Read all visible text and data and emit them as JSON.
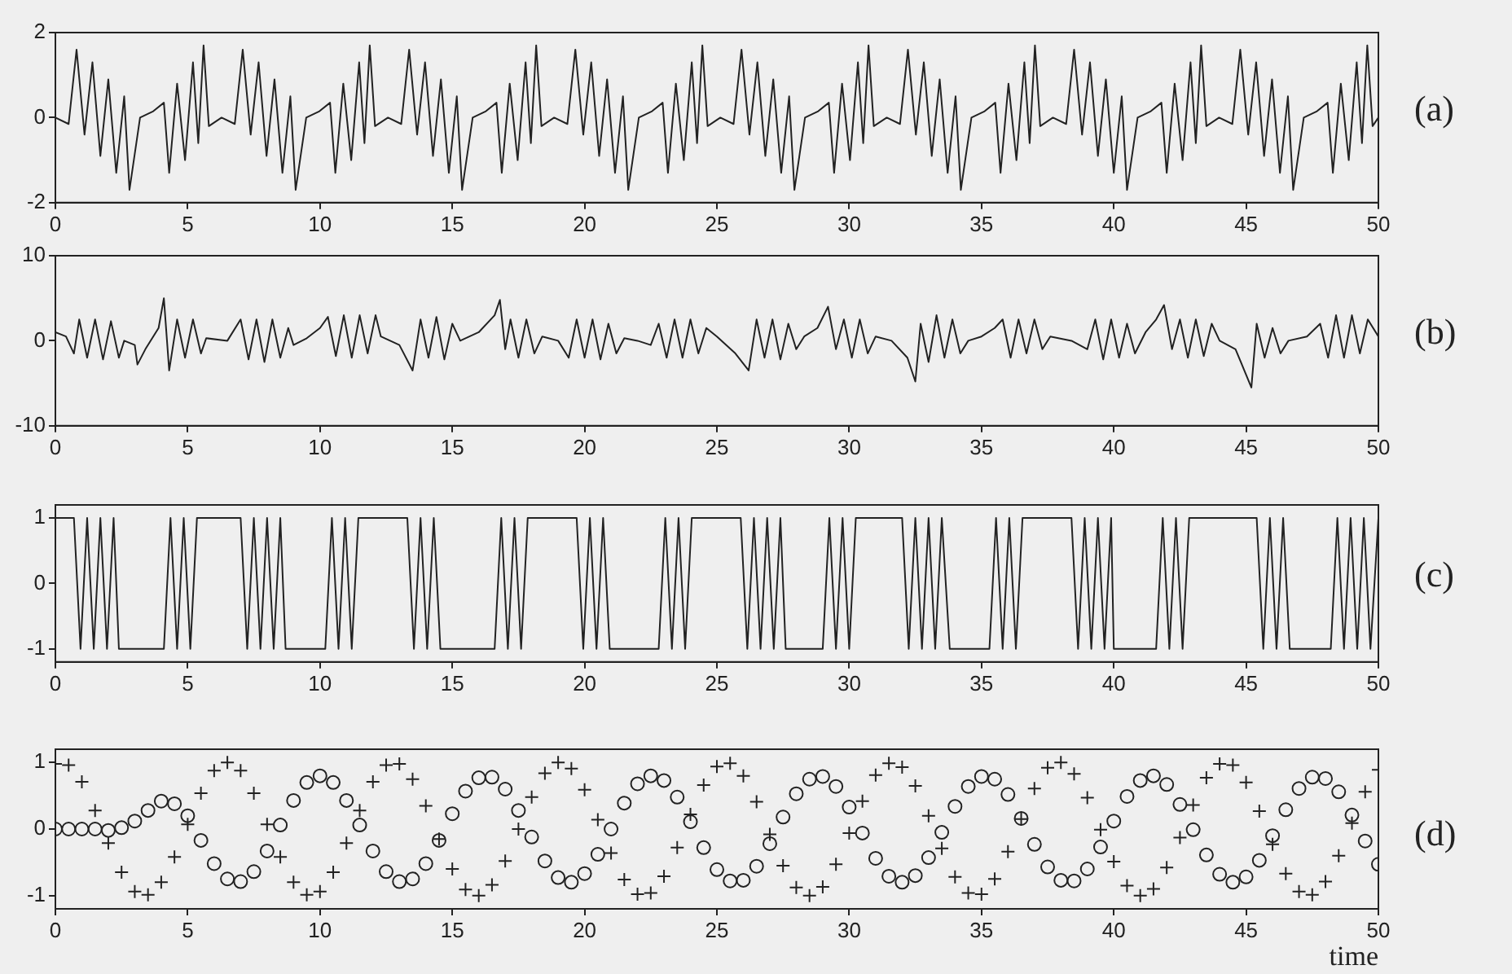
{
  "chart_data": [
    {
      "type": "line",
      "xlim": [
        0,
        50
      ],
      "xticks": [
        0,
        5,
        10,
        15,
        20,
        25,
        30,
        35,
        40,
        45,
        50
      ],
      "ylim": [
        -2,
        2
      ],
      "yticks": [
        -2,
        0,
        2
      ],
      "annotations": [
        "(a)"
      ],
      "x": [
        0,
        0.5,
        0.8,
        1.1,
        1.4,
        1.7,
        2,
        2.3,
        2.6,
        2.8,
        3.2,
        3.7,
        4.1,
        4.3,
        4.6,
        4.9,
        5.2,
        5.4,
        5.6,
        5.8,
        6.28,
        6.78,
        7.08,
        7.38,
        7.68,
        7.98,
        8.28,
        8.58,
        8.88,
        9.08,
        9.48,
        9.98,
        10.38,
        10.58,
        10.88,
        11.18,
        11.48,
        11.68,
        11.88,
        12.08,
        12.57,
        13.07,
        13.37,
        13.67,
        13.97,
        14.27,
        14.57,
        14.87,
        15.17,
        15.37,
        15.77,
        16.27,
        16.67,
        16.87,
        17.17,
        17.47,
        17.77,
        17.97,
        18.17,
        18.37,
        18.85,
        19.35,
        19.65,
        19.95,
        20.25,
        20.55,
        20.85,
        21.15,
        21.45,
        21.65,
        22.05,
        22.55,
        22.95,
        23.15,
        23.45,
        23.75,
        24.05,
        24.25,
        24.45,
        24.65,
        25.13,
        25.63,
        25.93,
        26.23,
        26.53,
        26.83,
        27.13,
        27.43,
        27.73,
        27.93,
        28.33,
        28.83,
        29.23,
        29.43,
        29.73,
        30.03,
        30.33,
        30.53,
        30.73,
        30.93,
        31.42,
        31.92,
        32.22,
        32.52,
        32.82,
        33.12,
        33.42,
        33.72,
        34.02,
        34.22,
        34.62,
        35.12,
        35.52,
        35.72,
        36.02,
        36.32,
        36.62,
        36.82,
        37.02,
        37.22,
        37.7,
        38.2,
        38.5,
        38.8,
        39.1,
        39.4,
        39.7,
        40,
        40.3,
        40.5,
        40.9,
        41.4,
        41.8,
        42,
        42.3,
        42.6,
        42.9,
        43.1,
        43.3,
        43.5,
        43.98,
        44.48,
        44.78,
        45.08,
        45.38,
        45.68,
        45.98,
        46.28,
        46.58,
        46.78,
        47.18,
        47.68,
        48.08,
        48.28,
        48.58,
        48.88,
        49.18,
        49.38,
        49.58,
        49.78,
        50
      ],
      "series": [
        {
          "color": "#222222",
          "values": [
            0,
            -0.15,
            1.6,
            -0.4,
            1.3,
            -0.9,
            0.9,
            -1.3,
            0.5,
            -1.7,
            0,
            0.15,
            0.35,
            -1.3,
            0.8,
            -1,
            1.3,
            -0.6,
            1.7,
            -0.2,
            0,
            -0.15,
            1.6,
            -0.4,
            1.3,
            -0.9,
            0.9,
            -1.3,
            0.5,
            -1.7,
            0,
            0.15,
            0.35,
            -1.3,
            0.8,
            -1,
            1.3,
            -0.6,
            1.7,
            -0.2,
            0,
            -0.15,
            1.6,
            -0.4,
            1.3,
            -0.9,
            0.9,
            -1.3,
            0.5,
            -1.7,
            0,
            0.15,
            0.35,
            -1.3,
            0.8,
            -1,
            1.3,
            -0.6,
            1.7,
            -0.2,
            0,
            -0.15,
            1.6,
            -0.4,
            1.3,
            -0.9,
            0.9,
            -1.3,
            0.5,
            -1.7,
            0,
            0.15,
            0.35,
            -1.3,
            0.8,
            -1,
            1.3,
            -0.6,
            1.7,
            -0.2,
            0,
            -0.15,
            1.6,
            -0.4,
            1.3,
            -0.9,
            0.9,
            -1.3,
            0.5,
            -1.7,
            0,
            0.15,
            0.35,
            -1.3,
            0.8,
            -1,
            1.3,
            -0.6,
            1.7,
            -0.2,
            0,
            -0.15,
            1.6,
            -0.4,
            1.3,
            -0.9,
            0.9,
            -1.3,
            0.5,
            -1.7,
            0,
            0.15,
            0.35,
            -1.3,
            0.8,
            -1,
            1.3,
            -0.6,
            1.7,
            -0.2,
            0,
            -0.15,
            1.6,
            -0.4,
            1.3,
            -0.9,
            0.9,
            -1.3,
            0.5,
            -1.7,
            0,
            0.15,
            0.35,
            -1.3,
            0.8,
            -1,
            1.3,
            -0.6,
            1.7,
            -0.2,
            0,
            -0.15,
            1.6,
            -0.4,
            1.3,
            -0.9,
            0.9,
            -1.3,
            0.5,
            -1.7,
            0,
            0.15,
            0.35,
            -1.3,
            0.8,
            -1,
            1.3,
            -0.6,
            1.7,
            -0.2,
            0
          ]
        }
      ]
    },
    {
      "type": "line",
      "xlim": [
        0,
        50
      ],
      "xticks": [
        0,
        5,
        10,
        15,
        20,
        25,
        30,
        35,
        40,
        45,
        50
      ],
      "ylim": [
        -10,
        10
      ],
      "yticks": [
        -10,
        0,
        10
      ],
      "annotations": [
        "(b)"
      ],
      "x": [
        0,
        0.4,
        0.7,
        0.9,
        1.2,
        1.5,
        1.8,
        2.1,
        2.4,
        2.6,
        3,
        3.1,
        3.4,
        3.9,
        4.1,
        4.3,
        4.6,
        4.9,
        5.2,
        5.5,
        5.7,
        6.5,
        7,
        7.3,
        7.6,
        7.9,
        8.2,
        8.5,
        8.8,
        9,
        9.5,
        10,
        10.3,
        10.6,
        10.9,
        11.2,
        11.5,
        11.8,
        12.1,
        12.3,
        13,
        13.5,
        13.8,
        14.1,
        14.4,
        14.7,
        15,
        15.3,
        16,
        16.6,
        16.8,
        17,
        17.2,
        17.5,
        17.8,
        18.1,
        18.4,
        19,
        19.4,
        19.7,
        20,
        20.3,
        20.6,
        20.9,
        21.2,
        21.5,
        22,
        22.5,
        22.8,
        23.1,
        23.4,
        23.7,
        24,
        24.3,
        24.6,
        25,
        25.7,
        26.2,
        26.5,
        26.8,
        27.1,
        27.4,
        27.7,
        28,
        28.3,
        28.8,
        29.2,
        29.5,
        29.8,
        30.1,
        30.4,
        30.7,
        31,
        31.6,
        32.2,
        32.5,
        32.7,
        33,
        33.3,
        33.6,
        33.9,
        34.2,
        34.5,
        35,
        35.5,
        35.8,
        36.1,
        36.4,
        36.7,
        37,
        37.3,
        37.6,
        38.4,
        39,
        39.3,
        39.6,
        39.9,
        40.2,
        40.5,
        40.8,
        41.2,
        41.6,
        41.9,
        42.2,
        42.5,
        42.8,
        43.1,
        43.4,
        43.7,
        44,
        44.6,
        45.2,
        45.4,
        45.7,
        46,
        46.3,
        46.6,
        47.3,
        47.8,
        48.1,
        48.4,
        48.7,
        49,
        49.3,
        49.6,
        50
      ],
      "series": [
        {
          "color": "#222222",
          "values": [
            1,
            0.5,
            -1.5,
            2.5,
            -2,
            2.5,
            -2.2,
            2.3,
            -2,
            0,
            -0.5,
            -2.8,
            -1,
            1.5,
            5,
            -3.5,
            2.5,
            -2,
            2.5,
            -1.5,
            0.3,
            0,
            2.5,
            -2.2,
            2.5,
            -2.5,
            2.5,
            -2,
            1.5,
            -0.5,
            0.3,
            1.5,
            2.8,
            -1.8,
            3,
            -2,
            3,
            -1.5,
            3,
            0.5,
            -0.5,
            -3.5,
            2.5,
            -2,
            2.8,
            -2.2,
            2,
            0,
            1,
            3,
            4.8,
            -1,
            2.5,
            -2,
            2.5,
            -1.5,
            0.5,
            0,
            -2,
            2.5,
            -2,
            2.5,
            -2.2,
            2,
            -1.5,
            0.3,
            0,
            -0.5,
            2,
            -2,
            2.5,
            -2,
            2.5,
            -1.5,
            1.5,
            0.5,
            -1.5,
            -3.5,
            2.5,
            -2,
            2.5,
            -2.2,
            2,
            -1,
            0.5,
            1.5,
            4,
            -1,
            2.5,
            -2,
            2.5,
            -1.5,
            0.5,
            0,
            -2,
            -4.8,
            2,
            -2.5,
            3,
            -2,
            2.5,
            -1.5,
            0,
            0.5,
            1.5,
            2.5,
            -2,
            2.5,
            -1.5,
            2.5,
            -1,
            0.5,
            0,
            -1,
            2.5,
            -2.2,
            2.5,
            -2,
            2,
            -1.5,
            1,
            2.5,
            4.2,
            -1,
            2.5,
            -2,
            2.5,
            -1.8,
            2,
            0,
            -1,
            -5.5,
            2,
            -2,
            1.5,
            -1.5,
            0,
            0.5,
            2,
            -2,
            3,
            -2,
            3,
            -1.5,
            2.5,
            0.5
          ]
        }
      ]
    },
    {
      "type": "line",
      "xlim": [
        0,
        50
      ],
      "xticks": [
        0,
        5,
        10,
        15,
        20,
        25,
        30,
        35,
        40,
        45,
        50
      ],
      "ylim": [
        -1.2,
        1.2
      ],
      "yticks": [
        -1,
        0,
        1
      ],
      "annotations": [
        "(c)"
      ],
      "x": [
        0,
        0.7,
        0.95,
        1.2,
        1.45,
        1.7,
        1.95,
        2.2,
        2.4,
        4.1,
        4.35,
        4.6,
        4.85,
        5.1,
        5.35,
        7,
        7.25,
        7.5,
        7.75,
        8,
        8.25,
        8.5,
        8.7,
        10.2,
        10.45,
        10.7,
        10.95,
        11.2,
        11.45,
        13.3,
        13.55,
        13.8,
        14.05,
        14.3,
        14.55,
        16.6,
        16.85,
        17.1,
        17.35,
        17.6,
        17.85,
        19.7,
        19.95,
        20.2,
        20.45,
        20.7,
        20.95,
        22.8,
        23.05,
        23.3,
        23.55,
        23.8,
        24.05,
        25.9,
        26.15,
        26.4,
        26.65,
        26.9,
        27.15,
        27.4,
        27.6,
        29,
        29.25,
        29.5,
        29.75,
        30,
        30.25,
        32,
        32.25,
        32.5,
        32.75,
        33,
        33.25,
        33.5,
        33.8,
        35.3,
        35.55,
        35.8,
        36.05,
        36.3,
        36.55,
        38.4,
        38.65,
        38.9,
        39.15,
        39.4,
        39.65,
        39.9,
        40,
        41.6,
        41.85,
        42.1,
        42.35,
        42.6,
        42.85,
        45.4,
        45.65,
        45.9,
        46.15,
        46.4,
        46.65,
        48.2,
        48.45,
        48.7,
        48.95,
        49.2,
        49.45,
        49.7,
        50
      ],
      "series": [
        {
          "color": "#222222",
          "values": [
            1,
            1,
            -1,
            1,
            -1,
            1,
            -1,
            1,
            -1,
            -1,
            1,
            -1,
            1,
            -1,
            1,
            1,
            -1,
            1,
            -1,
            1,
            -1,
            1,
            -1,
            -1,
            1,
            -1,
            1,
            -1,
            1,
            1,
            -1,
            1,
            -1,
            1,
            -1,
            -1,
            1,
            -1,
            1,
            -1,
            1,
            1,
            -1,
            1,
            -1,
            1,
            -1,
            -1,
            1,
            -1,
            1,
            -1,
            1,
            1,
            -1,
            1,
            -1,
            1,
            -1,
            1,
            -1,
            -1,
            1,
            -1,
            1,
            -1,
            1,
            1,
            -1,
            1,
            -1,
            1,
            -1,
            1,
            -1,
            -1,
            1,
            -1,
            1,
            -1,
            1,
            1,
            -1,
            1,
            -1,
            1,
            -1,
            1,
            -1,
            -1,
            1,
            -1,
            1,
            -1,
            1,
            1,
            -1,
            1,
            -1,
            1,
            -1,
            -1,
            1,
            -1,
            1,
            -1,
            1,
            -1,
            1
          ]
        }
      ]
    },
    {
      "type": "scatter",
      "xlim": [
        0,
        50
      ],
      "xticks": [
        0,
        5,
        10,
        15,
        20,
        25,
        30,
        35,
        40,
        45,
        50
      ],
      "ylim": [
        -1.2,
        1.2
      ],
      "yticks": [
        -1,
        0,
        1
      ],
      "xlabel": "time",
      "annotations": [
        "(d)"
      ],
      "x": [
        0,
        0.5,
        1,
        1.5,
        2,
        2.5,
        3,
        3.5,
        4,
        4.5,
        5,
        5.5,
        6,
        6.5,
        7,
        7.5,
        8,
        8.5,
        9,
        9.5,
        10,
        10.5,
        11,
        11.5,
        12,
        12.5,
        13,
        13.5,
        14,
        14.5,
        15,
        15.5,
        16,
        16.5,
        17,
        17.5,
        18,
        18.5,
        19,
        19.5,
        20,
        20.5,
        21,
        21.5,
        22,
        22.5,
        23,
        23.5,
        24,
        24.5,
        25,
        25.5,
        26,
        26.5,
        27,
        27.5,
        28,
        28.5,
        29,
        29.5,
        30,
        30.5,
        31,
        31.5,
        32,
        32.5,
        33,
        33.5,
        34,
        34.5,
        35,
        35.5,
        36,
        36.5,
        37,
        37.5,
        38,
        38.5,
        39,
        39.5,
        40,
        40.5,
        41,
        41.5,
        42,
        42.5,
        43,
        43.5,
        44,
        44.5,
        45,
        45.5,
        46,
        46.5,
        47,
        47.5,
        48,
        48.5,
        49,
        49.5,
        50
      ],
      "series": [
        {
          "color": "#222222",
          "marker": "circle",
          "values": [
            0,
            0,
            0,
            0,
            -0.02,
            0.02,
            0.12,
            0.28,
            0.42,
            0.38,
            0.2,
            -0.17,
            -0.52,
            -0.75,
            -0.79,
            -0.64,
            -0.33,
            0.06,
            0.43,
            0.7,
            0.8,
            0.7,
            0.43,
            0.06,
            -0.33,
            -0.64,
            -0.79,
            -0.75,
            -0.52,
            -0.17,
            0.23,
            0.57,
            0.77,
            0.78,
            0.6,
            0.28,
            -0.12,
            -0.48,
            -0.73,
            -0.8,
            -0.67,
            -0.38,
            0,
            0.39,
            0.68,
            0.8,
            0.73,
            0.48,
            0.11,
            -0.28,
            -0.61,
            -0.78,
            -0.77,
            -0.56,
            -0.22,
            0.18,
            0.53,
            0.75,
            0.79,
            0.64,
            0.33,
            -0.06,
            -0.44,
            -0.71,
            -0.8,
            -0.7,
            -0.43,
            -0.05,
            0.34,
            0.64,
            0.79,
            0.75,
            0.52,
            0.16,
            -0.23,
            -0.57,
            -0.77,
            -0.78,
            -0.6,
            -0.27,
            0.12,
            0.49,
            0.73,
            0.8,
            0.67,
            0.37,
            -0.01,
            -0.39,
            -0.68,
            -0.8,
            -0.72,
            -0.47,
            -0.1,
            0.29,
            0.61,
            0.78,
            0.76,
            0.56,
            0.21,
            -0.18,
            -0.53
          ]
        },
        {
          "color": "#222222",
          "marker": "cross",
          "values": [
            0.98,
            0.96,
            0.71,
            0.28,
            -0.21,
            -0.65,
            -0.94,
            -0.99,
            -0.8,
            -0.42,
            0.07,
            0.54,
            0.88,
            1,
            0.88,
            0.54,
            0.07,
            -0.42,
            -0.8,
            -0.99,
            -0.94,
            -0.65,
            -0.21,
            0.28,
            0.71,
            0.96,
            0.98,
            0.75,
            0.35,
            -0.15,
            -0.6,
            -0.91,
            -1,
            -0.84,
            -0.48,
            0,
            0.48,
            0.84,
            1,
            0.91,
            0.59,
            0.14,
            -0.36,
            -0.76,
            -0.98,
            -0.96,
            -0.71,
            -0.28,
            0.22,
            0.66,
            0.94,
            0.99,
            0.8,
            0.41,
            -0.08,
            -0.55,
            -0.88,
            -1,
            -0.87,
            -0.53,
            -0.06,
            0.42,
            0.81,
            0.99,
            0.93,
            0.65,
            0.2,
            -0.29,
            -0.72,
            -0.96,
            -0.98,
            -0.75,
            -0.34,
            0.15,
            0.61,
            0.92,
            1,
            0.83,
            0.47,
            -0.01,
            -0.49,
            -0.85,
            -1,
            -0.9,
            -0.58,
            -0.13,
            0.36,
            0.77,
            0.98,
            0.96,
            0.7,
            0.27,
            -0.23,
            -0.67,
            -0.94,
            -0.99,
            -0.79,
            -0.4,
            0.09,
            0.56,
            0.89
          ]
        }
      ]
    }
  ]
}
